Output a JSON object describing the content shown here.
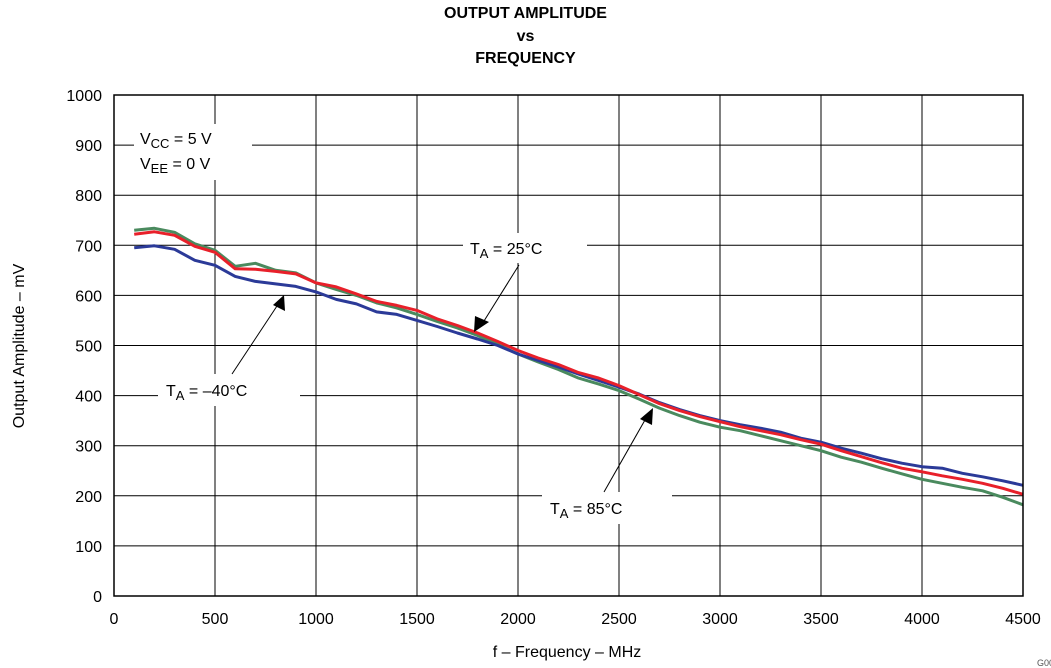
{
  "chart_data": {
    "type": "line",
    "title": [
      "OUTPUT AMPLITUDE",
      "vs",
      "FREQUENCY"
    ],
    "xlabel": "f – Frequency – MHz",
    "ylabel": "Output Amplitude – mV",
    "xlim": [
      0,
      4500
    ],
    "ylim": [
      0,
      1000
    ],
    "xticks": [
      0,
      500,
      1000,
      1500,
      2000,
      2500,
      3000,
      3500,
      4000,
      4500
    ],
    "yticks": [
      0,
      100,
      200,
      300,
      400,
      500,
      600,
      700,
      800,
      900,
      1000
    ],
    "grid": true,
    "conditions": [
      {
        "main": "V",
        "sub": "CC",
        "rest": " = 5 V"
      },
      {
        "main": "V",
        "sub": "EE",
        "rest": " = 0 V"
      }
    ],
    "annotations": [
      {
        "main": "T",
        "sub": "A",
        "rest": " = 25°C"
      },
      {
        "main": "T",
        "sub": "A",
        "rest": " = –40°C"
      },
      {
        "main": "T",
        "sub": "A",
        "rest": " = 85°C"
      }
    ],
    "figure_id": "G001",
    "series": [
      {
        "color": "#e8202a",
        "x": [
          100,
          200,
          300,
          400,
          500,
          600,
          700,
          800,
          900,
          1000,
          1100,
          1200,
          1300,
          1400,
          1500,
          1600,
          1700,
          1800,
          1900,
          2000,
          2100,
          2200,
          2300,
          2400,
          2500,
          2600,
          2700,
          2800,
          2900,
          3000,
          3100,
          3200,
          3300,
          3400,
          3500,
          3600,
          3700,
          3800,
          3900,
          4000,
          4100,
          4200,
          4300,
          4400,
          4500
        ],
        "values": [
          722,
          727,
          720,
          698,
          686,
          653,
          652,
          648,
          643,
          625,
          617,
          603,
          588,
          580,
          570,
          553,
          540,
          525,
          508,
          490,
          475,
          462,
          446,
          435,
          420,
          402,
          384,
          370,
          358,
          348,
          338,
          330,
          322,
          312,
          303,
          290,
          278,
          266,
          255,
          248,
          240,
          233,
          225,
          215,
          203
        ]
      },
      {
        "color": "#4a8a5e",
        "x": [
          100,
          200,
          300,
          400,
          500,
          600,
          700,
          800,
          900,
          1000,
          1100,
          1200,
          1300,
          1400,
          1500,
          1600,
          1700,
          1800,
          1900,
          2000,
          2100,
          2200,
          2300,
          2400,
          2500,
          2600,
          2700,
          2800,
          2900,
          3000,
          3100,
          3200,
          3300,
          3400,
          3500,
          3600,
          3700,
          3800,
          3900,
          4000,
          4100,
          4200,
          4300,
          4400,
          4500
        ],
        "values": [
          730,
          734,
          726,
          703,
          690,
          658,
          664,
          650,
          645,
          625,
          612,
          600,
          585,
          575,
          562,
          548,
          535,
          520,
          502,
          483,
          467,
          452,
          435,
          423,
          410,
          393,
          375,
          360,
          347,
          337,
          330,
          320,
          310,
          300,
          290,
          277,
          267,
          255,
          244,
          233,
          225,
          217,
          210,
          197,
          182
        ]
      },
      {
        "color": "#2b3a98",
        "x": [
          100,
          200,
          300,
          400,
          500,
          600,
          700,
          800,
          900,
          1000,
          1100,
          1200,
          1300,
          1400,
          1500,
          1600,
          1700,
          1800,
          1900,
          2000,
          2100,
          2200,
          2300,
          2400,
          2500,
          2600,
          2700,
          2800,
          2900,
          3000,
          3100,
          3200,
          3300,
          3400,
          3500,
          3600,
          3700,
          3800,
          3900,
          4000,
          4100,
          4200,
          4300,
          4400,
          4500
        ],
        "values": [
          695,
          699,
          692,
          670,
          660,
          638,
          628,
          623,
          618,
          607,
          592,
          583,
          567,
          562,
          550,
          538,
          525,
          513,
          500,
          483,
          470,
          457,
          443,
          430,
          417,
          403,
          386,
          372,
          360,
          350,
          342,
          335,
          327,
          315,
          307,
          295,
          285,
          274,
          265,
          258,
          255,
          245,
          238,
          230,
          221
        ]
      }
    ]
  }
}
